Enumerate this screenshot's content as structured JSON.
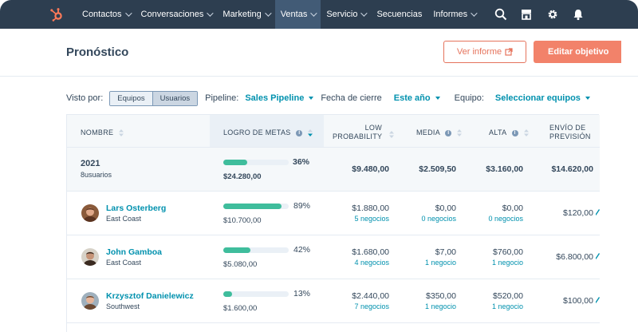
{
  "nav": {
    "items": [
      {
        "label": "Contactos",
        "chevron": true,
        "active": false
      },
      {
        "label": "Conversaciones",
        "chevron": true,
        "active": false
      },
      {
        "label": "Marketing",
        "chevron": true,
        "active": false
      },
      {
        "label": "Ventas",
        "chevron": true,
        "active": true
      },
      {
        "label": "Servicio",
        "chevron": true,
        "active": false
      },
      {
        "label": "Secuencias",
        "chevron": false,
        "active": false
      },
      {
        "label": "Informes",
        "chevron": true,
        "active": false
      }
    ],
    "icons": [
      "search-icon",
      "marketplace-icon",
      "settings-icon",
      "notifications-icon"
    ],
    "colors": {
      "bar": "#2d3e50",
      "active": "#425b76",
      "accent": "#ff7a59"
    }
  },
  "header": {
    "title": "Pronóstico",
    "report_button": "Ver informe",
    "edit_button": "Editar objetivo"
  },
  "filters": {
    "view_label": "Visto por:",
    "toggle": [
      "Equipos",
      "Usuarios"
    ],
    "toggle_selected": "Usuarios",
    "pipeline_label": "Pipeline:",
    "pipeline_value": "Sales Pipeline",
    "close_date_label": "Fecha de cierre",
    "close_date_value": "Este año",
    "team_label": "Equipo:",
    "team_value": "Seleccionar equipos"
  },
  "table": {
    "columns": {
      "name": "NOMBRE",
      "goal": "LOGRO DE METAS",
      "low_1": "LOW",
      "low_2": "PROBABILITY",
      "media": "MEDIA",
      "alta": "ALTA",
      "envio_1": "ENVÍO DE",
      "envio_2": "PREVISIÓN"
    },
    "summary": {
      "title": "2021",
      "subtitle": "8usuarios",
      "goal_pct": 36,
      "goal_pct_label": "36%",
      "goal_amount": "$24.280,00",
      "low": "$9.480,00",
      "media": "$2.509,50",
      "alta": "$3.160,00",
      "envio": "$14.620,00"
    },
    "rows": [
      {
        "name": "Lars Osterberg",
        "region": "East Coast",
        "goal_pct": 89,
        "goal_pct_label": "89%",
        "goal_amount": "$10.700,00",
        "low": "$1.880,00",
        "low_deals": "5 negocios",
        "media": "$0,00",
        "media_deals": "0 negocios",
        "alta": "$0,00",
        "alta_deals": "0 negocios",
        "envio": "$120,00"
      },
      {
        "name": "John Gamboa",
        "region": "East Coast",
        "goal_pct": 42,
        "goal_pct_label": "42%",
        "goal_amount": "$5.080,00",
        "low": "$1.680,00",
        "low_deals": "4 negocios",
        "media": "$7,00",
        "media_deals": "1 negocio",
        "alta": "$760,00",
        "alta_deals": "1 negocio",
        "envio": "$6.800,00"
      },
      {
        "name": "Krzysztof Danielewicz",
        "region": "Southwest",
        "goal_pct": 13,
        "goal_pct_label": "13%",
        "goal_amount": "$1.600,00",
        "low": "$2.440,00",
        "low_deals": "7 negocios",
        "media": "$350,00",
        "media_deals": "1 negocio",
        "alta": "$520,00",
        "alta_deals": "1 negocio",
        "envio": "$100,00"
      }
    ],
    "progress_color": "#3fbd9c"
  }
}
